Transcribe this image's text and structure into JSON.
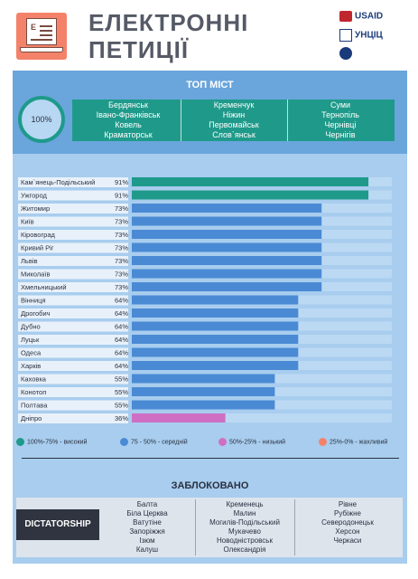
{
  "header": {
    "title_line1": "ЕЛЕКТРОННІ",
    "title_line2": "ПЕТИЦІЇ",
    "logo_letter": "E",
    "sponsors": [
      "USAID",
      "УНЦІЦ",
      ""
    ]
  },
  "top": {
    "title": "ТОП МІСТ",
    "percent": "100%",
    "cities": [
      [
        "Бердянськ",
        "Кременчук",
        "Суми"
      ],
      [
        "Івано-Франківськ",
        "Ніжин",
        "Тернопіль"
      ],
      [
        "Ковель",
        "Первомайськ",
        "Чернівці"
      ],
      [
        "Краматорськ",
        "Слов`янськ",
        "Чернігів"
      ]
    ]
  },
  "chart_data": {
    "type": "bar",
    "orientation": "horizontal",
    "xlim": [
      0,
      100
    ],
    "categories": [
      "Кам`янець-Подільський",
      "Ужгород",
      "Житомир",
      "Київ",
      "Кіровоград",
      "Кривий Ріг",
      "Львів",
      "Миколаїв",
      "Хмельницький",
      "Вінниця",
      "Дрогобич",
      "Дубно",
      "Луцьк",
      "Одеса",
      "Харків",
      "Каховка",
      "Конотоп",
      "Полтава",
      "Дніпро"
    ],
    "values": [
      91,
      91,
      73,
      73,
      73,
      73,
      73,
      73,
      73,
      64,
      64,
      64,
      64,
      64,
      64,
      55,
      55,
      55,
      36
    ],
    "labels": [
      "91%",
      "91%",
      "73%",
      "73%",
      "73%",
      "73%",
      "73%",
      "73%",
      "73%",
      "64%",
      "64%",
      "64%",
      "64%",
      "64%",
      "64%",
      "55%",
      "55%",
      "55%",
      "36%"
    ],
    "colors": {
      "high": "#1f9a8a",
      "medium": "#4a8ad4",
      "low": "#cf6fc4",
      "bad": "#f4826a",
      "track": "#bcd9f4",
      "label_bg": "#e8f1fa"
    }
  },
  "legend": [
    {
      "label": "100%-75% - високий",
      "color": "#1f9a8a"
    },
    {
      "label": "75 - 50% - середній",
      "color": "#4a8ad4"
    },
    {
      "label": "50%-25% - низький",
      "color": "#cf6fc4"
    },
    {
      "label": "25%-0% - жахливий",
      "color": "#f4826a"
    }
  ],
  "blocked": {
    "title": "ЗАБЛОКОВАНО",
    "badge": "DICTATORSHIP",
    "columns": [
      [
        "Балта",
        "Біла Церква",
        "Ватутіне",
        "Запоріжжя",
        "Ізюм",
        "Калуш"
      ],
      [
        "Кременець",
        "Малин",
        "Могилів-Подільський",
        "Мукачево",
        "Новодністровськ",
        "Олександрія"
      ],
      [
        "Рівне",
        "Рубіжне",
        "Северодонецьк",
        "Херсон",
        "Черкаси"
      ]
    ]
  }
}
